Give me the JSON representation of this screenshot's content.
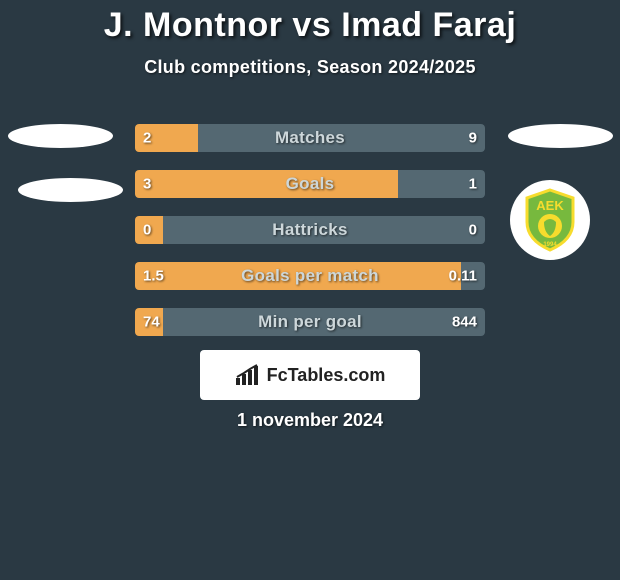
{
  "header": {
    "title": "J. Montnor vs Imad Faraj",
    "subtitle": "Club competitions, Season 2024/2025"
  },
  "colors": {
    "background": "#2a3943",
    "seg_left": "#f0a84f",
    "seg_right": "#546872",
    "text": "#ffffff",
    "bar_label": "#cdd7da",
    "brand_bg": "#ffffff",
    "brand_text": "#222222",
    "badge_green": "#77b93e",
    "badge_yellow": "#f7dc2d"
  },
  "bars": [
    {
      "label": "Matches",
      "left": "2",
      "right": "9",
      "left_pct": 18,
      "right_pct": 82
    },
    {
      "label": "Goals",
      "left": "3",
      "right": "1",
      "left_pct": 75,
      "right_pct": 25
    },
    {
      "label": "Hattricks",
      "left": "0",
      "right": "0",
      "left_pct": 8,
      "right_pct": 92
    },
    {
      "label": "Goals per match",
      "left": "1.5",
      "right": "0.11",
      "left_pct": 93,
      "right_pct": 7
    },
    {
      "label": "Min per goal",
      "left": "74",
      "right": "844",
      "left_pct": 8,
      "right_pct": 92
    }
  ],
  "brand": {
    "text": "FcTables.com"
  },
  "footer": {
    "date": "1 november 2024"
  }
}
